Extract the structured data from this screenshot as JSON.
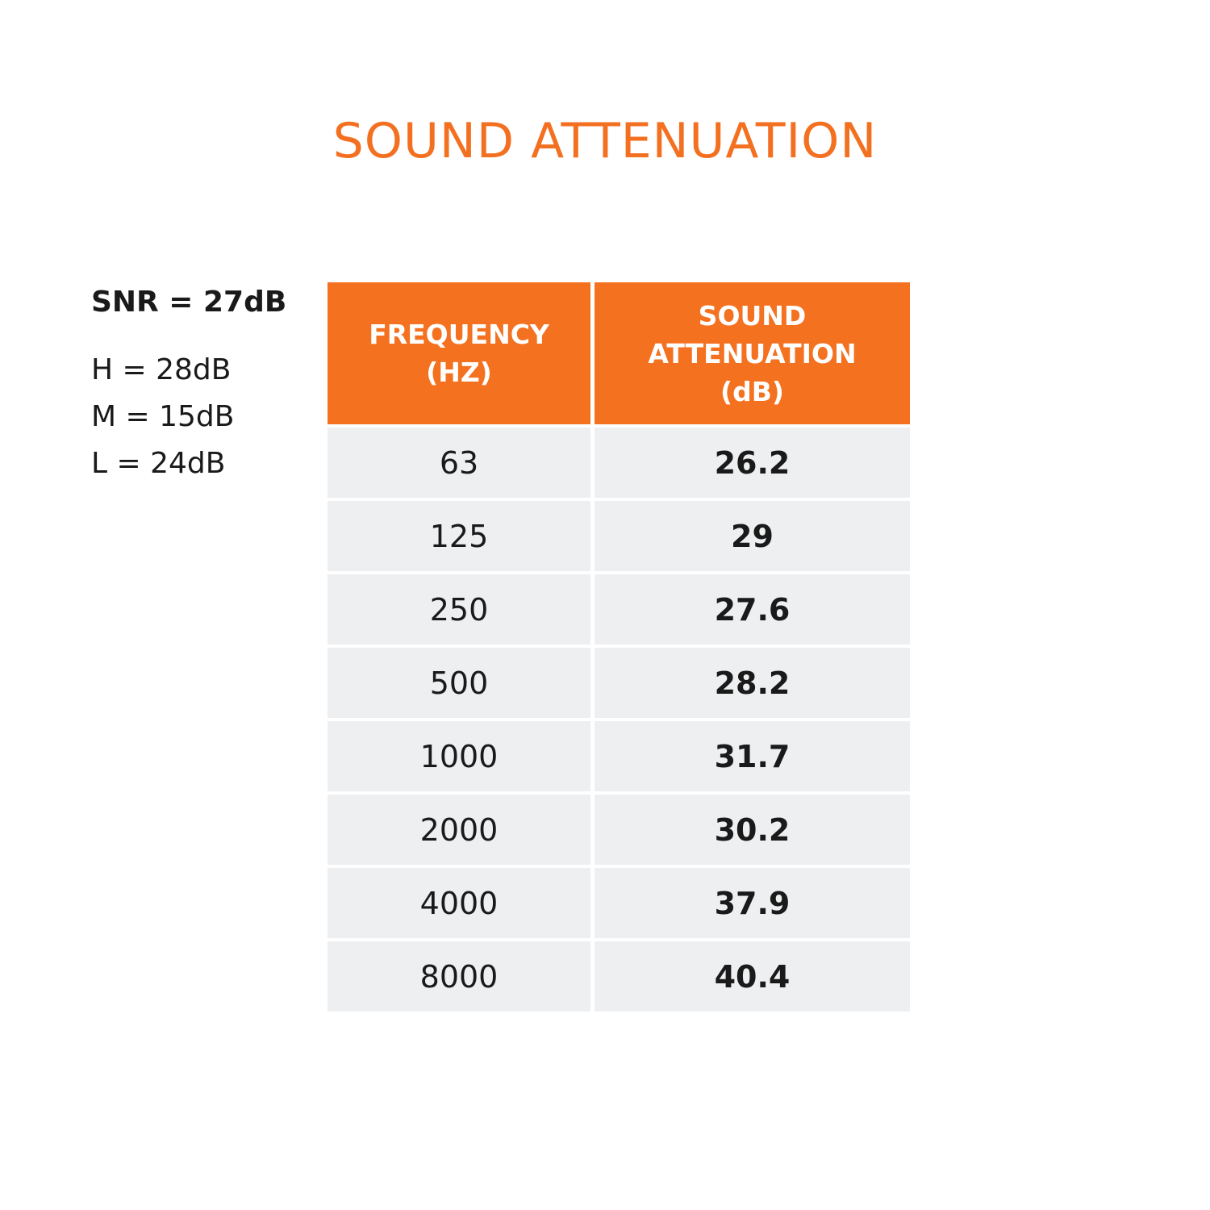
{
  "title": "SOUND ATTENUATION",
  "notes": [
    "SNR = 27dB",
    "H = 28dB",
    "M = 15dB",
    "L = 24dB"
  ],
  "table": {
    "headers": [
      "FREQUENCY (HZ)",
      "SOUND ATTENUATION (dB)"
    ],
    "rows": [
      [
        63,
        26.2
      ],
      [
        125,
        29
      ],
      [
        250,
        27.6
      ],
      [
        500,
        28.2
      ],
      [
        1000,
        31.7
      ],
      [
        2000,
        30.2
      ],
      [
        4000,
        37.9
      ],
      [
        8000,
        40.4
      ]
    ]
  }
}
